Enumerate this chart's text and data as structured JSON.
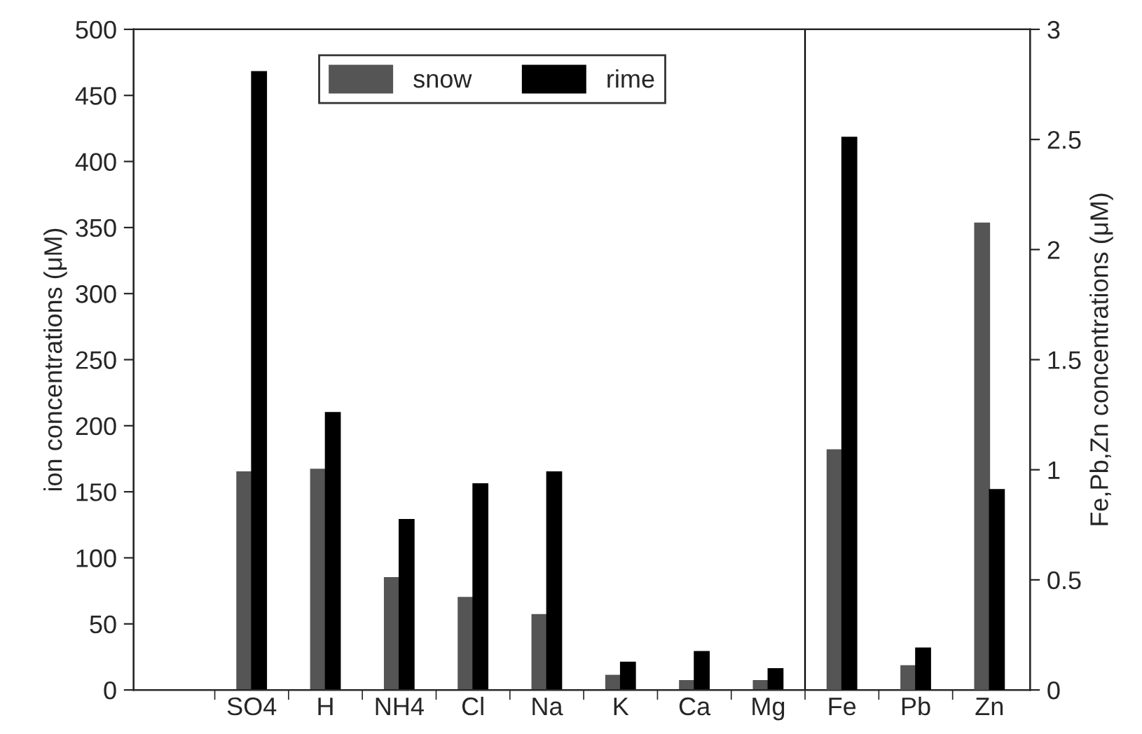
{
  "chart_data": {
    "type": "bar",
    "categories": [
      null,
      "SO4",
      "H",
      "NH4",
      "Cl",
      "Na",
      "K",
      "Ca",
      "Mg",
      "Fe",
      "Pb",
      "Zn"
    ],
    "series": [
      {
        "name": "snow",
        "color": "#555555",
        "axis": "y",
        "values": [
          null,
          165,
          167,
          85,
          70,
          57,
          11,
          7,
          7,
          null,
          null,
          null
        ]
      },
      {
        "name": "rime",
        "color": "#000000",
        "axis": "y",
        "values": [
          null,
          468,
          210,
          129,
          156,
          165,
          21,
          29,
          16,
          null,
          null,
          null
        ]
      },
      {
        "color": "#555555",
        "axis": "y2",
        "values": [
          null,
          null,
          null,
          null,
          null,
          null,
          null,
          null,
          null,
          1.09,
          0.11,
          2.12
        ]
      },
      {
        "color": "#000000",
        "axis": "y2",
        "values": [
          null,
          null,
          null,
          null,
          null,
          null,
          null,
          null,
          null,
          2.51,
          0.19,
          0.91
        ]
      }
    ],
    "ylabel": "ion concentrations (μM)",
    "y2label": "Fe,Pb,Zn concentrations (μM)",
    "ylim": [
      0,
      500
    ],
    "yticks": [
      0,
      50,
      100,
      150,
      200,
      250,
      300,
      350,
      400,
      450,
      500
    ],
    "y2lim": [
      0,
      3
    ],
    "y2ticks": [
      0,
      0.5,
      1,
      1.5,
      2,
      2.5,
      3
    ],
    "legend": "top",
    "grid": false
  }
}
